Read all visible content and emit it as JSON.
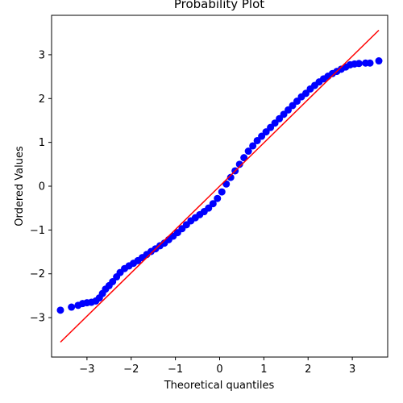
{
  "chart_data": {
    "type": "scatter",
    "title": "Probability Plot",
    "xlabel": "Theoretical quantiles",
    "ylabel": "Ordered Values",
    "xlim": [
      -3.8,
      3.8
    ],
    "ylim": [
      -3.9,
      3.9
    ],
    "xticks": [
      -3,
      -2,
      -1,
      0,
      1,
      2,
      3
    ],
    "yticks": [
      -3,
      -2,
      -1,
      0,
      1,
      2,
      3
    ],
    "xtick_labels": [
      "−3",
      "−2",
      "−1",
      "0",
      "1",
      "2",
      "3"
    ],
    "ytick_labels": [
      "−3",
      "−2",
      "−1",
      "0",
      "1",
      "2",
      "3"
    ],
    "grid": false,
    "series": [
      {
        "kind": "points",
        "color": "#0000ff",
        "points": [
          [
            -3.6,
            -2.83
          ],
          [
            -3.35,
            -2.76
          ],
          [
            -3.2,
            -2.72
          ],
          [
            -3.1,
            -2.68
          ],
          [
            -3.0,
            -2.66
          ],
          [
            -2.9,
            -2.65
          ],
          [
            -2.8,
            -2.62
          ],
          [
            -2.72,
            -2.55
          ],
          [
            -2.65,
            -2.45
          ],
          [
            -2.58,
            -2.35
          ],
          [
            -2.5,
            -2.27
          ],
          [
            -2.42,
            -2.18
          ],
          [
            -2.33,
            -2.07
          ],
          [
            -2.25,
            -1.97
          ],
          [
            -2.15,
            -1.88
          ],
          [
            -2.05,
            -1.82
          ],
          [
            -1.95,
            -1.76
          ],
          [
            -1.85,
            -1.7
          ],
          [
            -1.75,
            -1.63
          ],
          [
            -1.65,
            -1.56
          ],
          [
            -1.55,
            -1.49
          ],
          [
            -1.45,
            -1.43
          ],
          [
            -1.35,
            -1.36
          ],
          [
            -1.25,
            -1.3
          ],
          [
            -1.15,
            -1.22
          ],
          [
            -1.05,
            -1.14
          ],
          [
            -0.95,
            -1.06
          ],
          [
            -0.85,
            -0.97
          ],
          [
            -0.75,
            -0.88
          ],
          [
            -0.65,
            -0.79
          ],
          [
            -0.55,
            -0.72
          ],
          [
            -0.45,
            -0.65
          ],
          [
            -0.35,
            -0.58
          ],
          [
            -0.25,
            -0.5
          ],
          [
            -0.15,
            -0.4
          ],
          [
            -0.05,
            -0.28
          ],
          [
            0.05,
            -0.13
          ],
          [
            0.15,
            0.05
          ],
          [
            0.25,
            0.2
          ],
          [
            0.35,
            0.35
          ],
          [
            0.45,
            0.5
          ],
          [
            0.55,
            0.65
          ],
          [
            0.65,
            0.8
          ],
          [
            0.75,
            0.92
          ],
          [
            0.85,
            1.04
          ],
          [
            0.95,
            1.14
          ],
          [
            1.05,
            1.24
          ],
          [
            1.15,
            1.34
          ],
          [
            1.25,
            1.44
          ],
          [
            1.35,
            1.54
          ],
          [
            1.45,
            1.64
          ],
          [
            1.55,
            1.74
          ],
          [
            1.65,
            1.84
          ],
          [
            1.75,
            1.94
          ],
          [
            1.85,
            2.04
          ],
          [
            1.95,
            2.12
          ],
          [
            2.05,
            2.22
          ],
          [
            2.15,
            2.3
          ],
          [
            2.25,
            2.38
          ],
          [
            2.35,
            2.45
          ],
          [
            2.45,
            2.51
          ],
          [
            2.55,
            2.57
          ],
          [
            2.65,
            2.62
          ],
          [
            2.75,
            2.67
          ],
          [
            2.85,
            2.72
          ],
          [
            2.95,
            2.77
          ],
          [
            3.05,
            2.79
          ],
          [
            3.15,
            2.8
          ],
          [
            3.3,
            2.81
          ],
          [
            3.4,
            2.81
          ],
          [
            3.6,
            2.86
          ]
        ]
      },
      {
        "kind": "line",
        "color": "#ff0000",
        "points": [
          [
            -3.6,
            -3.56
          ],
          [
            3.6,
            3.56
          ]
        ]
      }
    ]
  }
}
